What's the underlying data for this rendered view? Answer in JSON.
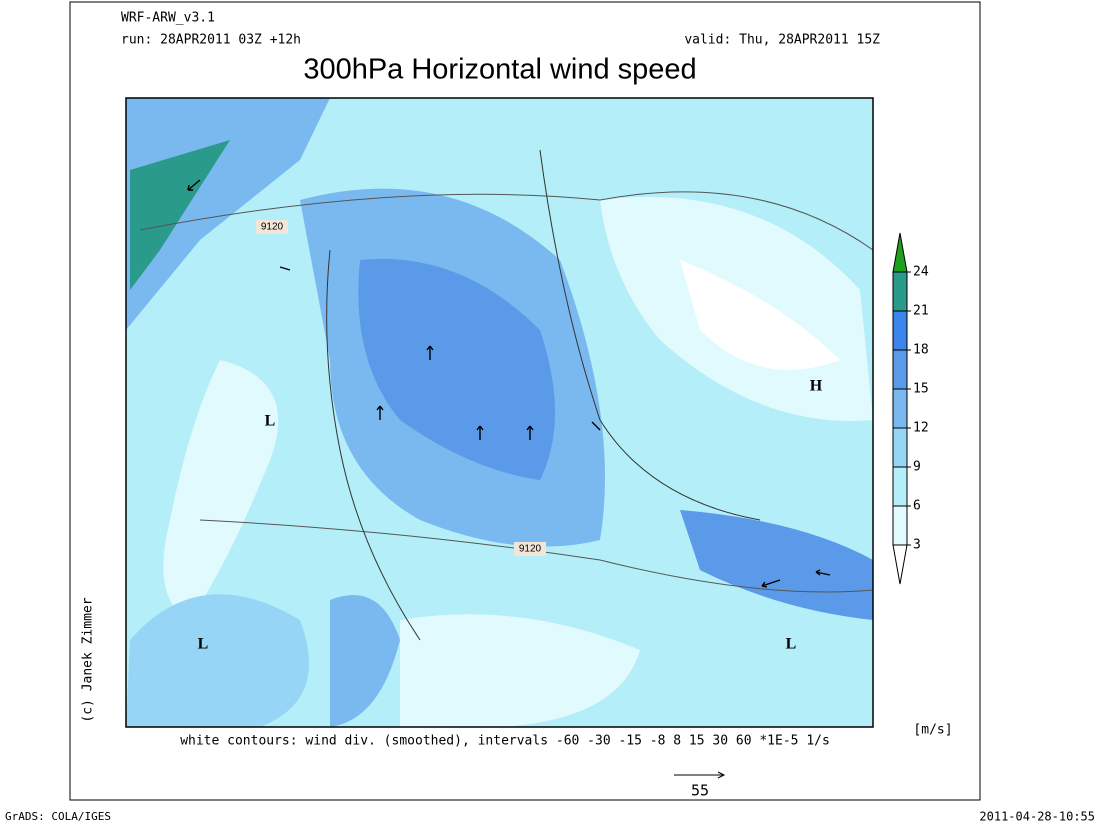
{
  "header": {
    "model": "WRF-ARW_v3.1",
    "run": "run: 28APR2011 03Z +12h",
    "valid": "valid: Thu, 28APR2011 15Z",
    "title": "300hPa Horizontal wind speed"
  },
  "map": {
    "contour_labels": [
      "9120",
      "9120"
    ],
    "pressure_labels": [
      "L",
      "L",
      "L",
      "H"
    ],
    "credit": "(c) Janek Zimmer",
    "caption": "white contours: wind div. (smoothed), intervals -60 -30 -15 -8 8 15 30 60 *1E-5 1/s",
    "reference_vector": "55"
  },
  "colorbar": {
    "unit": "[m/s]",
    "ticks": [
      3,
      6,
      9,
      12,
      15,
      18,
      21,
      24
    ],
    "colors": [
      "#ffffff",
      "#e1fafd",
      "#b4eef8",
      "#96d5f5",
      "#7ab9f0",
      "#5a9ae8",
      "#3a84ec",
      "#2a9a8a",
      "#1ea01e"
    ]
  },
  "footer": {
    "left": "GrADS: COLA/IGES",
    "right": "2011-04-28-10:55"
  }
}
